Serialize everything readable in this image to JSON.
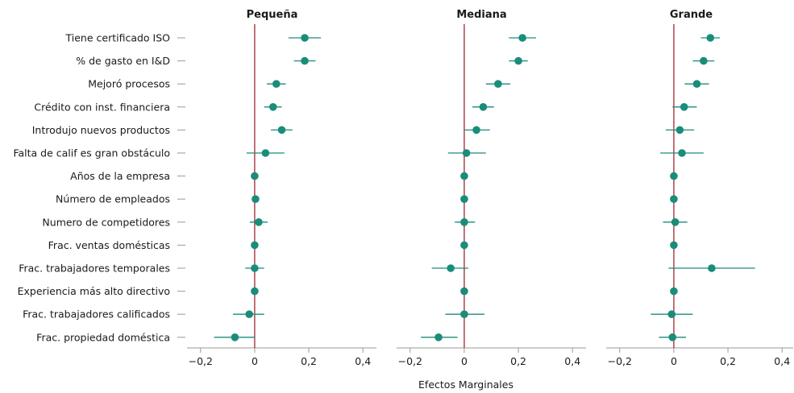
{
  "chart_data": {
    "type": "scatter",
    "xlabel": "Efectos Marginales",
    "variables": [
      "Tiene certificado ISO",
      "% de gasto en I&D",
      "Mejoró procesos",
      "Crédito con inst. financiera",
      "Introdujo nuevos productos",
      "Falta de calif es gran obstáculo",
      "Años de la empresa",
      "Número de empleados",
      "Numero de competidores",
      "Frac. ventas domésticas",
      "Frac. trabajadores temporales",
      "Experiencia más alto directivo",
      "Frac. trabajadores calificados",
      "Frac. propiedad doméstica"
    ],
    "xlim": [
      -0.25,
      0.45
    ],
    "xticks": [
      -0.2,
      0,
      0.2,
      0.4
    ],
    "xtick_labels": [
      "−0,2",
      "0",
      "0,2",
      "0,4"
    ],
    "colors": {
      "point": "#1a8c7a",
      "zero_line": "#a0262e",
      "axis": "#999999"
    },
    "panels": [
      {
        "title": "Pequeña",
        "estimates": [
          0.185,
          0.185,
          0.08,
          0.068,
          0.1,
          0.04,
          0.0,
          0.003,
          0.015,
          0.0,
          0.0,
          0.0,
          -0.02,
          -0.073
        ],
        "ci_low": [
          0.125,
          0.145,
          0.045,
          0.035,
          0.06,
          -0.03,
          0.0,
          0.0,
          -0.018,
          0.0,
          -0.035,
          0.0,
          -0.08,
          -0.15
        ],
        "ci_high": [
          0.245,
          0.225,
          0.115,
          0.1,
          0.14,
          0.11,
          0.0,
          0.006,
          0.048,
          0.0,
          0.035,
          0.0,
          0.035,
          0.0
        ]
      },
      {
        "title": "Mediana",
        "estimates": [
          0.215,
          0.2,
          0.125,
          0.07,
          0.045,
          0.008,
          0.0,
          0.0,
          0.0,
          0.0,
          -0.05,
          0.0,
          0.0,
          -0.095
        ],
        "ci_low": [
          0.165,
          0.165,
          0.08,
          0.03,
          0.0,
          -0.06,
          0.0,
          0.0,
          -0.035,
          0.0,
          -0.12,
          0.0,
          -0.07,
          -0.16
        ],
        "ci_high": [
          0.265,
          0.235,
          0.17,
          0.11,
          0.095,
          0.08,
          0.0,
          0.0,
          0.04,
          0.0,
          0.015,
          0.0,
          0.075,
          -0.025
        ]
      },
      {
        "title": "Grande",
        "estimates": [
          0.135,
          0.11,
          0.085,
          0.038,
          0.022,
          0.03,
          0.0,
          0.0,
          0.005,
          0.0,
          0.14,
          0.0,
          -0.008,
          -0.005
        ],
        "ci_low": [
          0.1,
          0.07,
          0.04,
          -0.005,
          -0.03,
          -0.05,
          0.0,
          0.0,
          -0.04,
          0.0,
          -0.02,
          0.0,
          -0.085,
          -0.055
        ],
        "ci_high": [
          0.17,
          0.15,
          0.13,
          0.085,
          0.075,
          0.11,
          0.0,
          0.0,
          0.05,
          0.0,
          0.3,
          0.0,
          0.07,
          0.045
        ]
      }
    ]
  }
}
